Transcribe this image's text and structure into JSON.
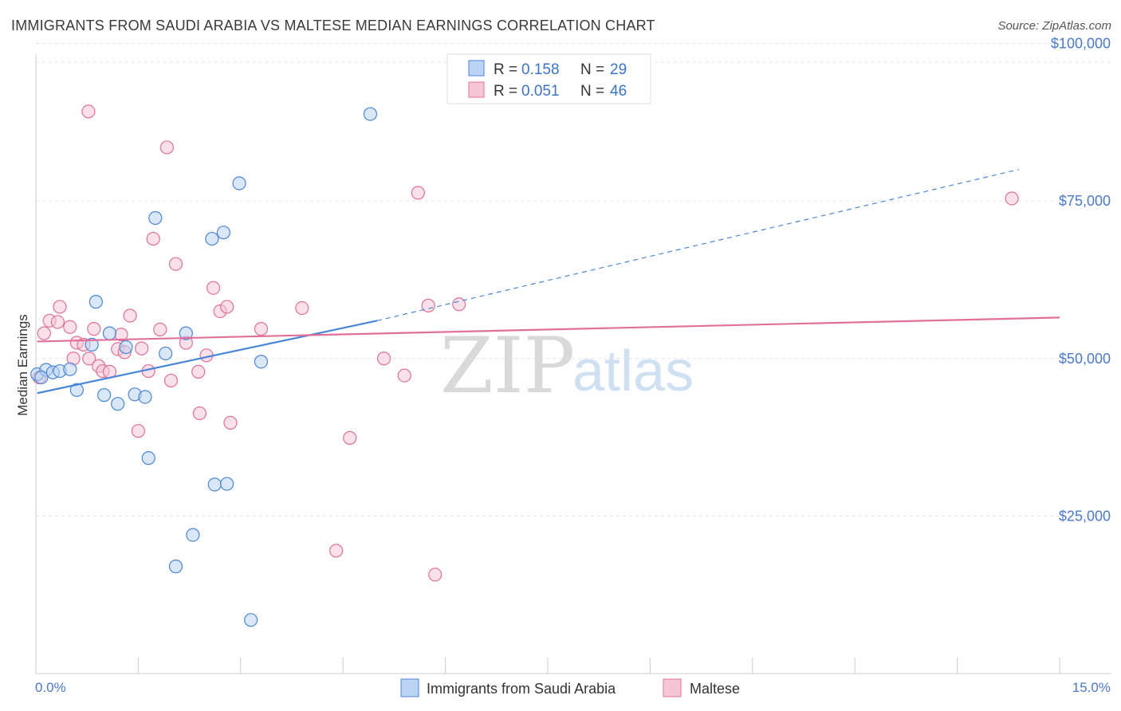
{
  "header": {
    "title": "IMMIGRANTS FROM SAUDI ARABIA VS MALTESE MEDIAN EARNINGS CORRELATION CHART",
    "source": "Source: ZipAtlas.com"
  },
  "watermark": {
    "zip": "ZIP",
    "atlas": "atlas"
  },
  "colors": {
    "blue": "#4a86d8",
    "blue_fill": "#bcd4f3",
    "pink": "#e0709a",
    "pink_fill": "#f6c6d6",
    "axis_text": "#4a7ac8"
  },
  "legend": {
    "r_label": "R =",
    "n_label": "N =",
    "rows": [
      {
        "r": "0.158",
        "n": "29"
      },
      {
        "r": "0.051",
        "n": "46"
      }
    ]
  },
  "chart_data": {
    "type": "scatter",
    "title": "IMMIGRANTS FROM SAUDI ARABIA VS MALTESE MEDIAN EARNINGS CORRELATION CHART",
    "ylabel": "Median Earnings",
    "xlabel": "",
    "xlim": [
      0,
      15
    ],
    "ylim": [
      0,
      105000
    ],
    "x_tick_labels": [
      "0.0%",
      "15.0%"
    ],
    "y_ticks": [
      {
        "value": 25000,
        "label": "$25,000"
      },
      {
        "value": 50000,
        "label": "$50,000"
      },
      {
        "value": 75000,
        "label": "$75,000"
      },
      {
        "value": 100000,
        "label": "$100,000"
      }
    ],
    "series": [
      {
        "name": "Immigrants from Saudi Arabia",
        "color": "#4a86d8",
        "R": 0.158,
        "N": 29,
        "trend": {
          "x0": 0.02,
          "y0": 44500,
          "x1": 5.0,
          "y1": 56000,
          "dash_x1": 14.4,
          "dash_y1": 80000
        },
        "points": [
          [
            0.02,
            47500
          ],
          [
            0.15,
            48200
          ],
          [
            0.25,
            47800
          ],
          [
            0.35,
            48000
          ],
          [
            0.5,
            48300
          ],
          [
            0.6,
            45000
          ],
          [
            0.88,
            59000
          ],
          [
            0.82,
            52200
          ],
          [
            1.0,
            44200
          ],
          [
            1.08,
            54000
          ],
          [
            1.2,
            42800
          ],
          [
            1.32,
            51800
          ],
          [
            1.45,
            44300
          ],
          [
            1.6,
            43900
          ],
          [
            1.65,
            34200
          ],
          [
            1.75,
            72300
          ],
          [
            1.9,
            50800
          ],
          [
            2.05,
            17000
          ],
          [
            2.2,
            54000
          ],
          [
            2.3,
            22000
          ],
          [
            2.58,
            69000
          ],
          [
            2.62,
            30000
          ],
          [
            2.75,
            70000
          ],
          [
            2.8,
            30100
          ],
          [
            2.98,
            77800
          ],
          [
            3.15,
            8500
          ],
          [
            3.3,
            49500
          ],
          [
            4.9,
            88800
          ],
          [
            0.08,
            47000
          ]
        ]
      },
      {
        "name": "Maltese",
        "color": "#e0709a",
        "R": 0.051,
        "N": 46,
        "trend": {
          "x0": 0.02,
          "y0": 52700,
          "x1": 15.0,
          "y1": 56500
        },
        "points": [
          [
            0.05,
            47000
          ],
          [
            0.12,
            54000
          ],
          [
            0.2,
            56000
          ],
          [
            0.32,
            55800
          ],
          [
            0.35,
            58200
          ],
          [
            0.5,
            55000
          ],
          [
            0.55,
            50000
          ],
          [
            0.6,
            52500
          ],
          [
            0.7,
            52200
          ],
          [
            0.78,
            50000
          ],
          [
            0.85,
            54700
          ],
          [
            0.92,
            48800
          ],
          [
            0.98,
            48000
          ],
          [
            1.08,
            47900
          ],
          [
            1.2,
            51500
          ],
          [
            1.25,
            53800
          ],
          [
            1.3,
            51000
          ],
          [
            1.38,
            56800
          ],
          [
            1.5,
            38500
          ],
          [
            1.55,
            51600
          ],
          [
            1.65,
            48000
          ],
          [
            1.72,
            69000
          ],
          [
            1.82,
            54600
          ],
          [
            1.92,
            83500
          ],
          [
            1.98,
            46500
          ],
          [
            2.05,
            65000
          ],
          [
            2.2,
            52500
          ],
          [
            2.38,
            47900
          ],
          [
            2.4,
            41300
          ],
          [
            2.5,
            50500
          ],
          [
            2.6,
            61200
          ],
          [
            2.7,
            57500
          ],
          [
            2.8,
            58200
          ],
          [
            2.85,
            39800
          ],
          [
            3.3,
            54700
          ],
          [
            3.9,
            58000
          ],
          [
            4.4,
            19500
          ],
          [
            4.6,
            37400
          ],
          [
            5.1,
            50000
          ],
          [
            5.4,
            47300
          ],
          [
            5.6,
            76300
          ],
          [
            5.75,
            58400
          ],
          [
            5.85,
            15700
          ],
          [
            6.2,
            58600
          ],
          [
            14.3,
            75400
          ],
          [
            0.77,
            89200
          ]
        ]
      }
    ]
  }
}
